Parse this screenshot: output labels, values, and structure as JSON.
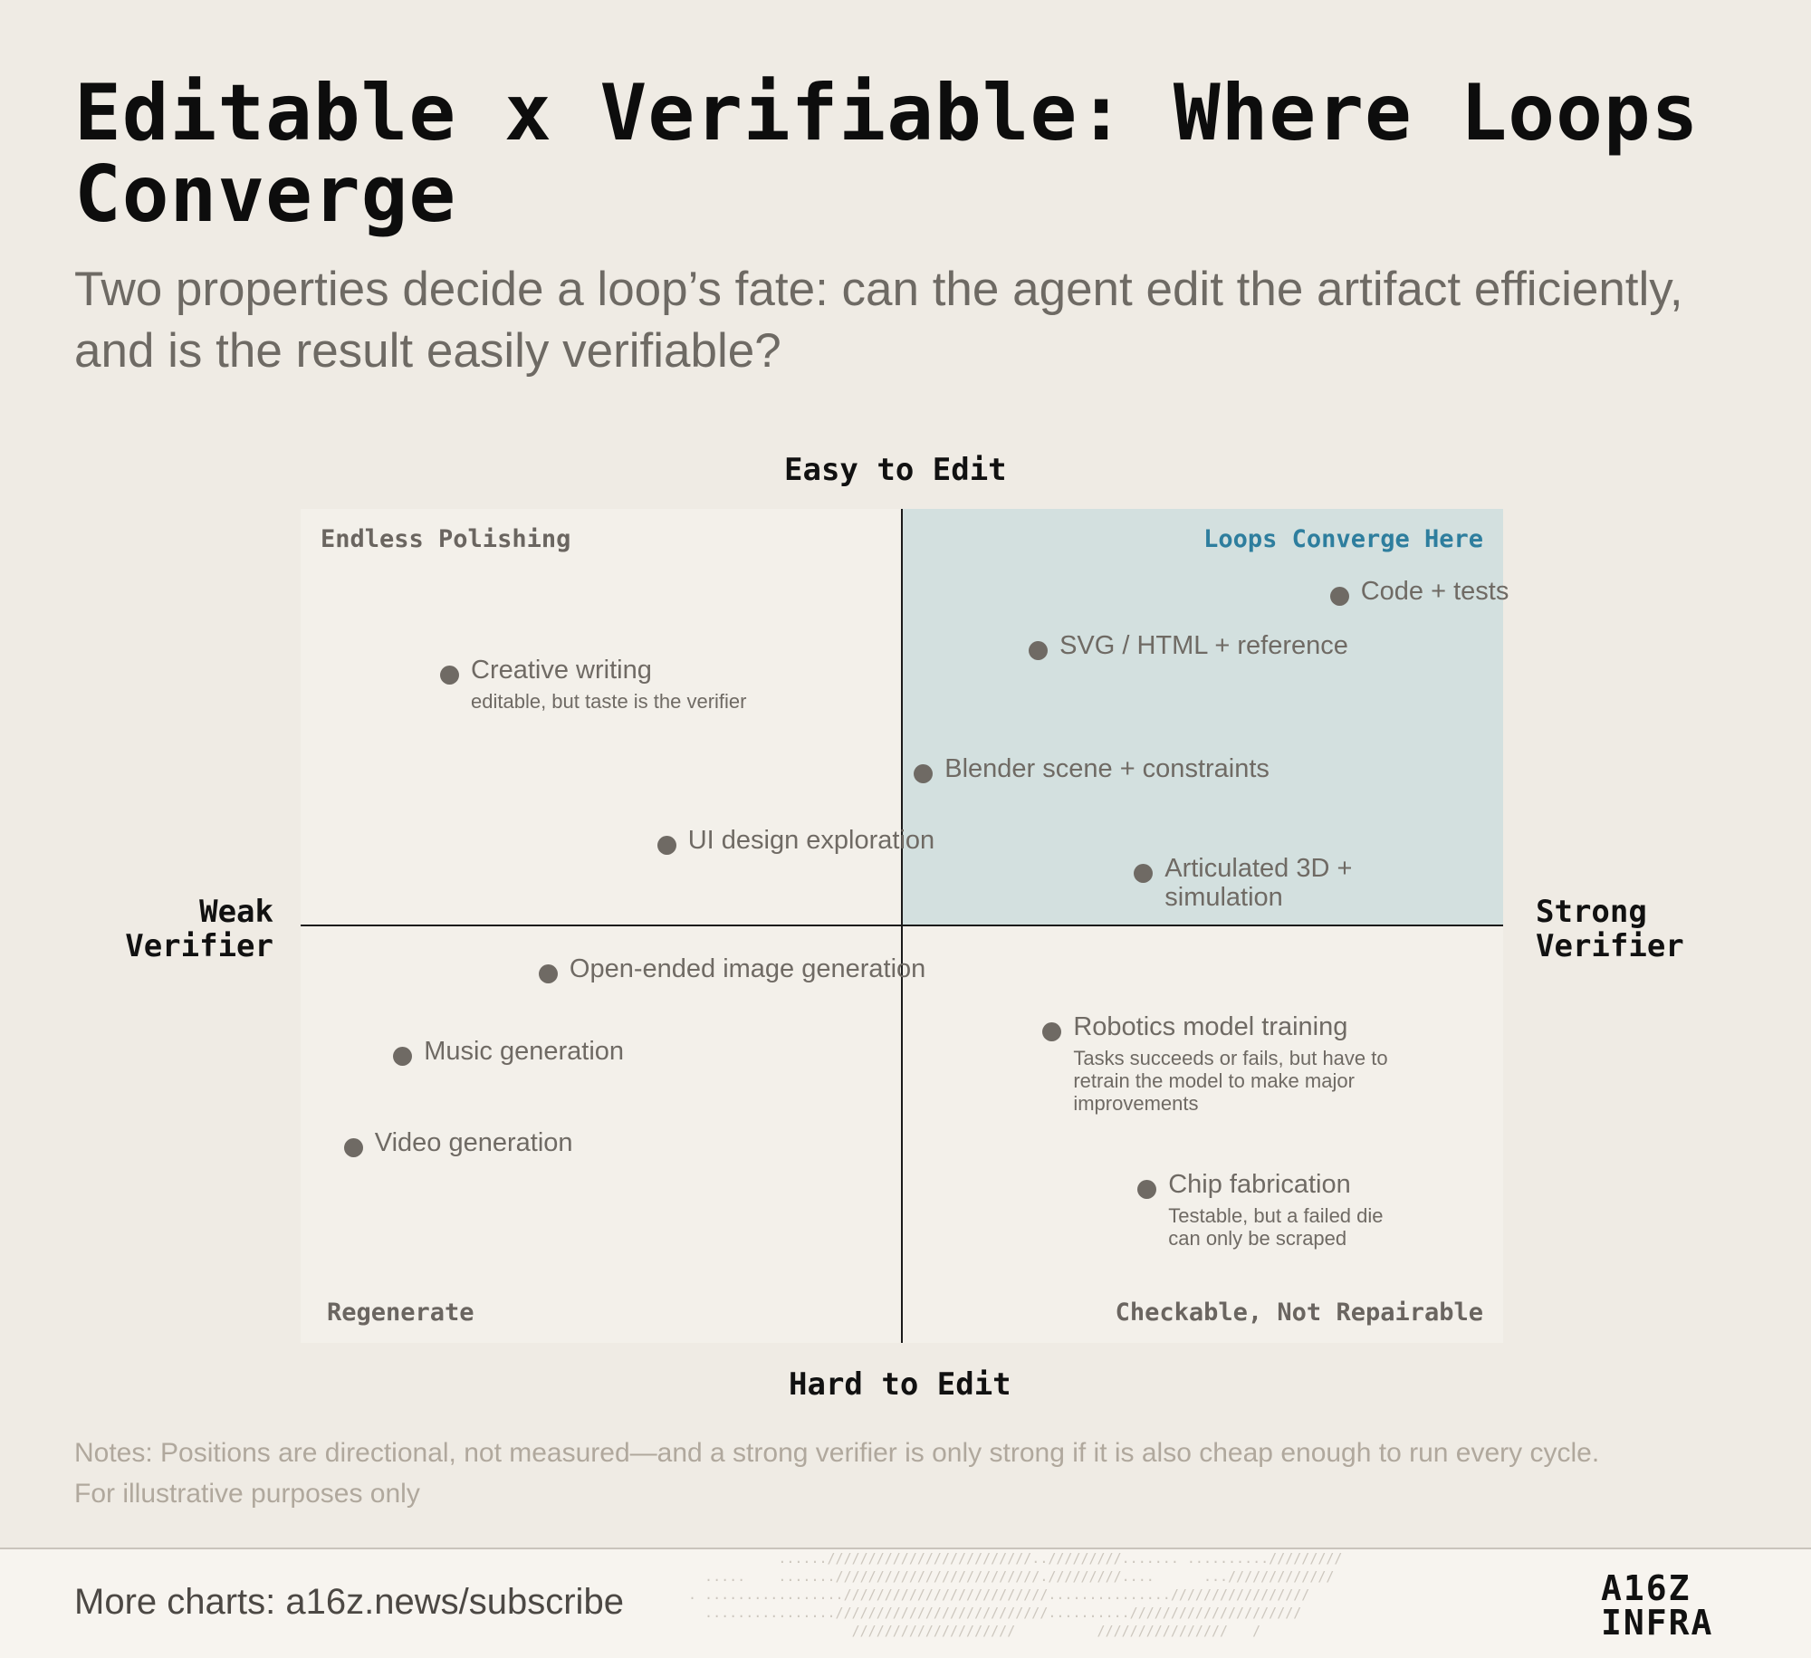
{
  "title": "Editable x Verifiable: Where Loops Converge",
  "subtitle": "Two properties decide a loop’s fate: can the agent edit the artifact efficiently, and is the result easily verifiable?",
  "notes": {
    "line1": "Notes: Positions are directional, not measured—and a strong verifier is only strong if it is also cheap enough to run every cycle.",
    "line2": "For illustrative purposes only"
  },
  "footer": {
    "cta": "More charts: a16z.news/subscribe",
    "logo_line1": "A16Z",
    "logo_line2": "INFRA"
  },
  "colors": {
    "background": "#efebe4",
    "plot_background": "#f3f0ea",
    "highlight_quadrant": "#d3e0df",
    "accent": "#2e7e9e",
    "point": "#6f6a64"
  },
  "chart_data": {
    "type": "scatter",
    "xlim": [
      -1,
      1
    ],
    "ylim": [
      -1,
      1
    ],
    "x_axis": {
      "left_label": "Weak Verifier",
      "right_label": "Strong Verifier"
    },
    "y_axis": {
      "top_label": "Easy to Edit",
      "bottom_label": "Hard to Edit"
    },
    "quadrants": {
      "top_left": "Endless Polishing",
      "top_right": "Loops Converge Here",
      "bottom_left": "Regenerate",
      "bottom_right": "Checkable, Not Repairable"
    },
    "highlighted_quadrant": "top-right",
    "points": [
      {
        "label": "Code + tests",
        "note": "",
        "x": 0.727,
        "y": 0.792
      },
      {
        "label": "SVG / HTML + reference",
        "note": "",
        "x": 0.226,
        "y": 0.662
      },
      {
        "label": "Creative writing",
        "note": "editable, but taste is the verifier",
        "x": -0.753,
        "y": 0.603
      },
      {
        "label": "Blender scene + constraints",
        "note": "",
        "x": 0.035,
        "y": 0.365
      },
      {
        "label": "UI design exploration",
        "note": "",
        "x": -0.392,
        "y": 0.195
      },
      {
        "label": "Articulated 3D + simulation",
        "note": "",
        "x": 0.401,
        "y": 0.128
      },
      {
        "label": "Open-ended image generation",
        "note": "",
        "x": -0.589,
        "y": -0.114
      },
      {
        "label": "Robotics model training",
        "note": "Tasks succeeds or fails, but have to retrain the model to make major improvements",
        "x": 0.249,
        "y": -0.253
      },
      {
        "label": "Music generation",
        "note": "",
        "x": -0.831,
        "y": -0.311
      },
      {
        "label": "Video generation",
        "note": "",
        "x": -0.913,
        "y": -0.531
      },
      {
        "label": "Chip fabrication",
        "note": "Testable, but a failed die can only be scraped",
        "x": 0.407,
        "y": -0.631
      }
    ]
  }
}
